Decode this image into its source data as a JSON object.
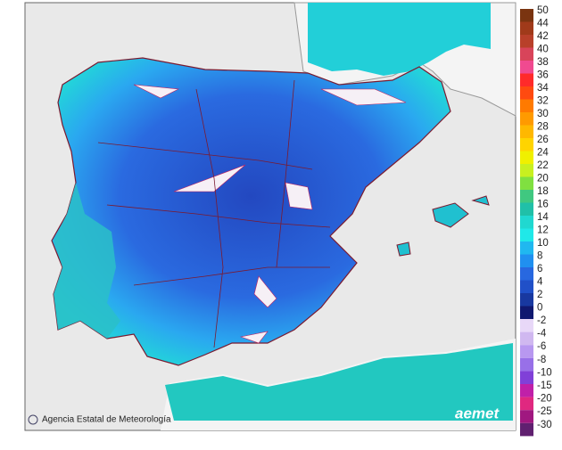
{
  "map": {
    "credit": "Agencia Estatal de Meteorología",
    "logo": "aemet",
    "legend": {
      "warm": [
        {
          "label": "50",
          "color": "#7a3410"
        },
        {
          "label": "44",
          "color": "#a03a1a"
        },
        {
          "label": "42",
          "color": "#b8402a"
        },
        {
          "label": "40",
          "color": "#d8445a"
        },
        {
          "label": "38",
          "color": "#f04a90"
        },
        {
          "label": "36",
          "color": "#ff2a2a"
        },
        {
          "label": "34",
          "color": "#ff4a10"
        },
        {
          "label": "32",
          "color": "#ff7a00"
        },
        {
          "label": "30",
          "color": "#ff9a00"
        },
        {
          "label": "28",
          "color": "#ffb800"
        },
        {
          "label": "26",
          "color": "#ffd400"
        },
        {
          "label": "24",
          "color": "#f0f000"
        },
        {
          "label": "22",
          "color": "#c8f020"
        },
        {
          "label": "20",
          "color": "#80e040"
        },
        {
          "label": "18",
          "color": "#40c880"
        },
        {
          "label": "16",
          "color": "#20c0a8"
        },
        {
          "label": "14",
          "color": "#20d8d0"
        },
        {
          "label": "12",
          "color": "#20e8e8"
        },
        {
          "label": "10",
          "color": "#20b8f0"
        },
        {
          "label": "8",
          "color": "#2090f0"
        },
        {
          "label": "6",
          "color": "#2868e0"
        },
        {
          "label": "4",
          "color": "#2050c8"
        },
        {
          "label": "2",
          "color": "#1838a0"
        },
        {
          "label": "0",
          "color": "#101870"
        }
      ],
      "cold": [
        {
          "label": "-2",
          "color": "#e8d8f8"
        },
        {
          "label": "-4",
          "color": "#d0b8f0"
        },
        {
          "label": "-6",
          "color": "#b898f0"
        },
        {
          "label": "-8",
          "color": "#9870e8"
        },
        {
          "label": "-10",
          "color": "#8040d8"
        },
        {
          "label": "-15",
          "color": "#c020a8"
        },
        {
          "label": "-20",
          "color": "#e02880"
        },
        {
          "label": "-25",
          "color": "#a01880"
        },
        {
          "label": "-30",
          "color": "#602070"
        }
      ]
    }
  }
}
